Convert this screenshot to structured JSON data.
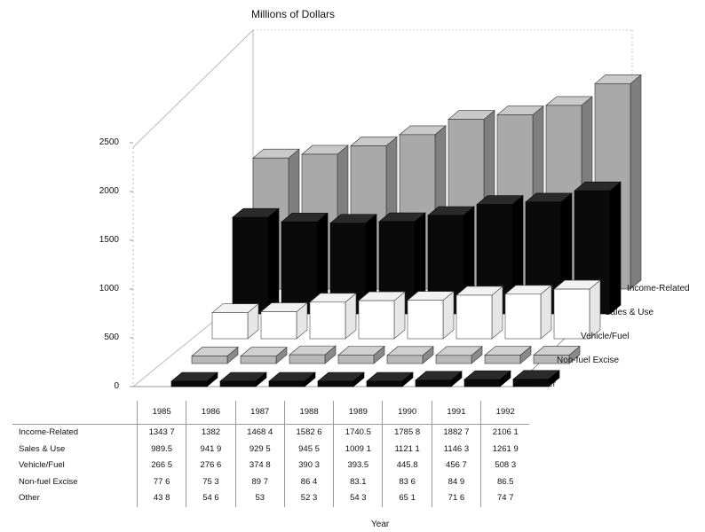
{
  "chart_data": {
    "type": "bar",
    "style": "3d-grouped-depth",
    "title": "Millions of Dollars",
    "xlabel": "Year",
    "ylabel": "",
    "ylim": [
      0,
      2500
    ],
    "yticks": [
      "0",
      "500",
      "1000",
      "1500",
      "2000",
      "2500"
    ],
    "categories": [
      "1985",
      "1986",
      "1987",
      "1988",
      "1989",
      "1990",
      "1991",
      "1992"
    ],
    "series": [
      {
        "name": "Income-Related",
        "color": "#a8a8a8",
        "values": [
          1343.7,
          1382,
          1468.4,
          1582.6,
          1740.5,
          1785.8,
          1882.7,
          2106.1
        ],
        "labels": [
          "1343 7",
          "1382",
          "1468 4",
          "1582 6",
          "1740.5",
          "1785 8",
          "1882 7",
          "2106 1"
        ]
      },
      {
        "name": "Sales & Use",
        "color": "#0a0a0a",
        "values": [
          989.5,
          941.9,
          929.5,
          945.5,
          1009.1,
          1121.1,
          1146.3,
          1261.9
        ],
        "labels": [
          "989.5",
          "941 9",
          "929 5",
          "945 5",
          "1009 1",
          "1121 1",
          "1146 3",
          "1261 9"
        ]
      },
      {
        "name": "Vehicle/Fuel",
        "color": "#ffffff",
        "values": [
          266.5,
          276.6,
          374.8,
          390.3,
          393.5,
          445.8,
          456.7,
          508.3
        ],
        "labels": [
          "266 5",
          "276 6",
          "374 8",
          "390 3",
          "393.5",
          "445.8",
          "456 7",
          "508 3"
        ]
      },
      {
        "name": "Non-fuel Excise",
        "color": "#bdbdbd",
        "values": [
          77.6,
          75.3,
          89.7,
          86.4,
          83.1,
          83.6,
          84.9,
          86.5
        ],
        "labels": [
          "77 6",
          "75 3",
          "89 7",
          "86 4",
          "83.1",
          "83 6",
          "84 9",
          "86.5"
        ]
      },
      {
        "name": "Other",
        "color": "#0a0a0a",
        "values": [
          43.8,
          54.6,
          53,
          52.3,
          54.3,
          65.1,
          71.6,
          74.7
        ],
        "labels": [
          "43 8",
          "54 6",
          "53",
          "52 3",
          "54 3",
          "65 1",
          "71 6",
          "74 7"
        ]
      }
    ]
  }
}
